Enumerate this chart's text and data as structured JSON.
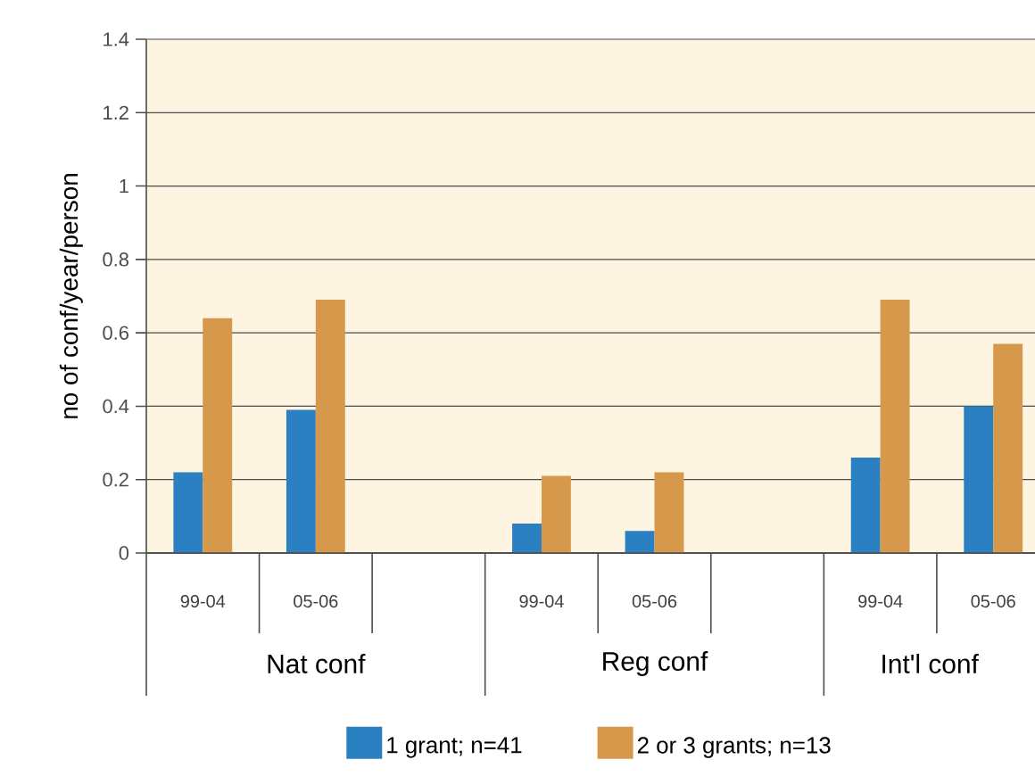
{
  "chart_data": {
    "type": "bar",
    "ylabel": "no of conf/year/person",
    "categories": [
      "99-04",
      "05-06",
      null,
      "99-04",
      "05-06",
      null,
      "99-04",
      "05-06"
    ],
    "series": [
      {
        "name": "1 grant; n=41",
        "color": "#2a80c1",
        "values": [
          0.22,
          0.39,
          null,
          0.08,
          0.06,
          null,
          0.26,
          0.4
        ]
      },
      {
        "name": "2 or 3 grants; n=13",
        "color": "#d6984b",
        "values": [
          0.64,
          0.69,
          null,
          0.21,
          0.22,
          null,
          0.69,
          0.57
        ]
      }
    ],
    "ylim": [
      0,
      1.4
    ],
    "yticks": [
      0,
      0.2,
      0.4,
      0.6,
      0.8,
      1,
      1.2,
      1.4
    ],
    "grid": "y",
    "legend": "bottom",
    "annotations": [
      "Nat conf",
      "Reg conf",
      "Int'l conf"
    ]
  }
}
